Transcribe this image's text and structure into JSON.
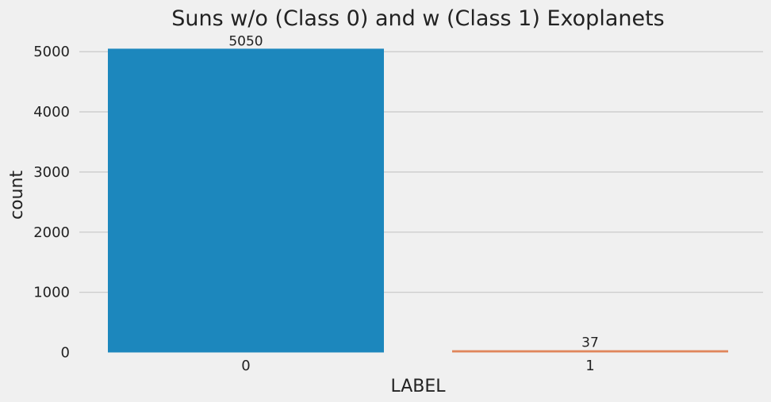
{
  "chart_data": {
    "type": "bar",
    "title": "Suns w/o (Class 0) and w (Class 1) Exoplanets",
    "xlabel": "LABEL",
    "ylabel": "count",
    "categories": [
      "0",
      "1"
    ],
    "values": [
      5050,
      37
    ],
    "data_labels": [
      "5050",
      "37"
    ],
    "colors": [
      "#1c87bd",
      "#e0865c"
    ],
    "ylim": [
      0,
      5300
    ],
    "yticks": [
      0,
      1000,
      2000,
      3000,
      4000,
      5000
    ],
    "grid": true,
    "background": "#f0f0f0"
  }
}
